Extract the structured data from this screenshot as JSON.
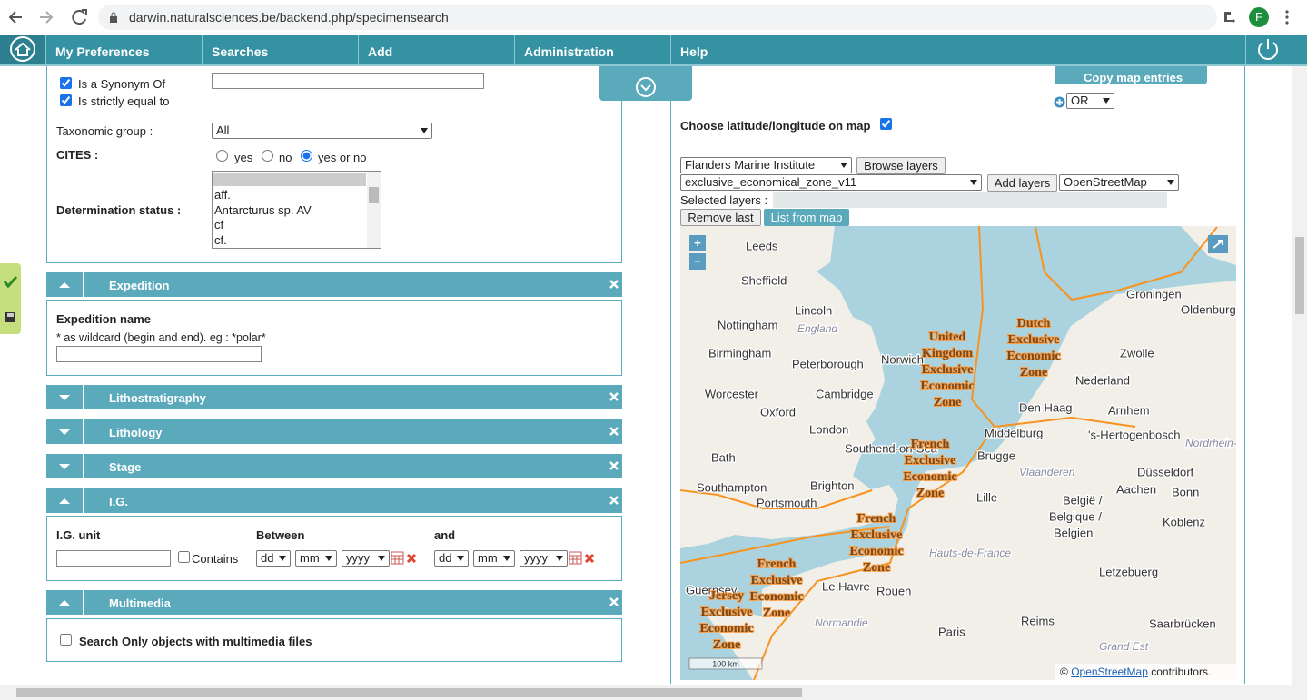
{
  "browser": {
    "url": "darwin.naturalsciences.be/backend.php/specimensearch",
    "profile": "F"
  },
  "nav": {
    "items": [
      "My Preferences",
      "Searches",
      "Add",
      "Administration",
      "Help"
    ]
  },
  "form": {
    "synonym_options": [
      "Is a Synonym Of",
      "Is strictly equal to"
    ],
    "taxonomic_group": {
      "label": "Taxonomic group :",
      "value": "All"
    },
    "cites": {
      "label": "CITES :",
      "options": [
        "yes",
        "no",
        "yes or no"
      ]
    },
    "determination_status": {
      "label": "Determination status :",
      "options": [
        "aff.",
        "Antarcturus sp. AV",
        "cf",
        "cf."
      ]
    },
    "sections": [
      {
        "title": "Expedition"
      },
      {
        "title": "Lithostratigraphy"
      },
      {
        "title": "Lithology"
      },
      {
        "title": "Stage"
      },
      {
        "title": "I.G."
      },
      {
        "title": "Multimedia"
      }
    ],
    "expedition": {
      "label": "Expedition name",
      "hint": "* as wildcard (begin and end). eg : *polar*"
    },
    "ig": {
      "unit_label": "I.G. unit",
      "contains": "Contains",
      "between": "Between",
      "and": "and",
      "date_parts": [
        "dd",
        "mm",
        "yyyy"
      ]
    },
    "multimedia": {
      "label": "Search Only objects with multimedia files"
    }
  },
  "map_panel": {
    "copy_button": "Copy map entries",
    "operator": "OR",
    "choose_label": "Choose latitude/longitude on map",
    "provider": "Flanders Marine Institute",
    "browse_button": "Browse layers",
    "layer": "exclusive_economical_zone_v11",
    "add_button": "Add layers",
    "base_layer": "OpenStreetMap",
    "selected_label": "Selected layers :",
    "remove_button": "Remove last",
    "list_button": "List from map"
  },
  "map": {
    "zoom_in": "+",
    "zoom_out": "−",
    "places": [
      "Leeds",
      "Sheffield",
      "Lincoln",
      "Nottingham",
      "England",
      "Birmingham",
      "Peterborough",
      "Norwich",
      "Cambridge",
      "Worcester",
      "Oxford",
      "London",
      "Southend-on-Sea",
      "Bath",
      "Southampton",
      "Portsmouth",
      "Brighton",
      "Groningen",
      "Oldenburg",
      "Zwolle",
      "Nederland",
      "Den Haag",
      "Arnhem",
      "Middelburg",
      "'s-Hertogenbosch",
      "Brugge",
      "Vlaanderen",
      "Düsseldorf",
      "Lille",
      "Aachen",
      "Bonn",
      "België /",
      "Belgique /",
      "Belgien",
      "Koblenz",
      "Hauts-de-France",
      "Le Havre",
      "Rouen",
      "Normandie",
      "Paris",
      "Reims",
      "Letzebuerg",
      "Saarbrücken",
      "Grand Est",
      "Guernsey",
      "Nordrhein-Westfalen"
    ],
    "zones": [
      "United Kingdom Exclusive Economic Zone",
      "Dutch Exclusive Economic Zone",
      "French Exclusive Economic Zone",
      "French Exclusive Economic Zone",
      "French Exclusive Economic Zone",
      "Jersey Exclusive Economic Zone"
    ],
    "scale": "100 km",
    "attribution": {
      "prefix": "©",
      "link": "OpenStreetMap",
      "suffix": "contributors."
    }
  }
}
